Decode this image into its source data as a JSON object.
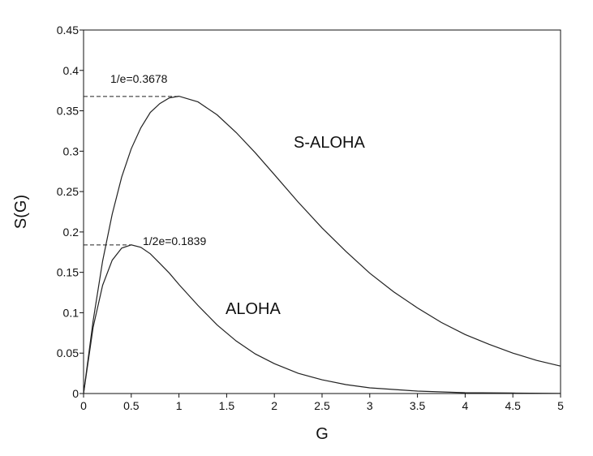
{
  "chart_data": {
    "type": "line",
    "title": "",
    "xlabel": "G",
    "ylabel": "S(G)",
    "xlim": [
      0,
      5
    ],
    "ylim": [
      0,
      0.45
    ],
    "grid": false,
    "xticks": [
      0,
      0.5,
      1,
      1.5,
      2,
      2.5,
      3,
      3.5,
      4,
      4.5,
      5
    ],
    "xtick_labels": [
      "0",
      "0.5",
      "1",
      "1.5",
      "2",
      "2.5",
      "3",
      "3.5",
      "4",
      "4.5",
      "5"
    ],
    "yticks": [
      0,
      0.05,
      0.1,
      0.15,
      0.2,
      0.25,
      0.3,
      0.35,
      0.4,
      0.45
    ],
    "ytick_labels": [
      "0",
      "0.05",
      "0.1",
      "0.15",
      "0.2",
      "0.25",
      "0.3",
      "0.35",
      "0.4",
      "0.45"
    ],
    "series": [
      {
        "name": "S-ALOHA",
        "x": [
          0,
          0.1,
          0.2,
          0.3,
          0.4,
          0.5,
          0.6,
          0.7,
          0.8,
          0.9,
          1.0,
          1.2,
          1.4,
          1.6,
          1.8,
          2.0,
          2.25,
          2.5,
          2.75,
          3.0,
          3.25,
          3.5,
          3.75,
          4.0,
          4.25,
          4.5,
          4.75,
          5.0
        ],
        "y": [
          0,
          0.09,
          0.164,
          0.222,
          0.268,
          0.303,
          0.329,
          0.348,
          0.359,
          0.366,
          0.368,
          0.361,
          0.345,
          0.323,
          0.298,
          0.271,
          0.237,
          0.205,
          0.176,
          0.149,
          0.126,
          0.106,
          0.088,
          0.073,
          0.061,
          0.05,
          0.041,
          0.034
        ]
      },
      {
        "name": "ALOHA",
        "x": [
          0,
          0.1,
          0.2,
          0.3,
          0.4,
          0.5,
          0.6,
          0.7,
          0.8,
          0.9,
          1.0,
          1.2,
          1.4,
          1.6,
          1.8,
          2.0,
          2.25,
          2.5,
          2.75,
          3.0,
          3.5,
          4.0,
          4.5,
          5.0
        ],
        "y": [
          0,
          0.082,
          0.134,
          0.165,
          0.18,
          0.184,
          0.181,
          0.173,
          0.161,
          0.149,
          0.135,
          0.109,
          0.085,
          0.065,
          0.049,
          0.037,
          0.025,
          0.017,
          0.011,
          0.007,
          0.003,
          0.001,
          0.0006,
          0.0002
        ]
      }
    ],
    "annotations": [
      {
        "text": "1/e=0.3678",
        "x": 1.0,
        "y": 0.3678
      },
      {
        "text": "1/2e=0.1839",
        "x": 0.5,
        "y": 0.1839
      }
    ],
    "series_labels": [
      {
        "text": "S-ALOHA"
      },
      {
        "text": "ALOHA"
      }
    ]
  }
}
